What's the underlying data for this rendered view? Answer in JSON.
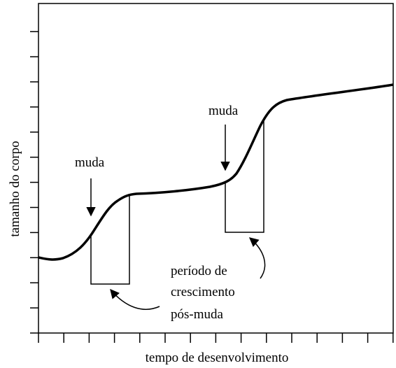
{
  "axes": {
    "y_label": "tamanho do corpo",
    "x_label": "tempo de desenvolvimento"
  },
  "annotations": {
    "molt_1": "muda",
    "molt_2": "muda",
    "growth_period": [
      "período de",
      "crescimento",
      "pós-muda"
    ]
  }
}
